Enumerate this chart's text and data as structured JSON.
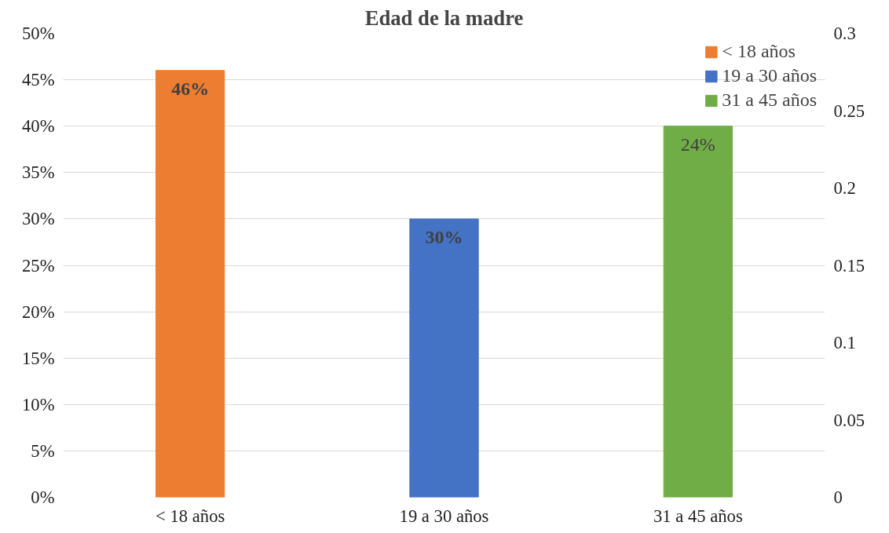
{
  "chart_data": {
    "type": "bar",
    "title": "Edad de la madre",
    "categories": [
      "< 18 años",
      "19 a 30 años",
      "31 a 45 años"
    ],
    "series": [
      {
        "name": "< 18 años",
        "color": "#ed7d31",
        "values": [
          46,
          null,
          null
        ],
        "value_labels": [
          "46%",
          null,
          null
        ]
      },
      {
        "name": "19 a 30 años",
        "color": "#4472c4",
        "values": [
          null,
          30,
          null
        ],
        "value_labels": [
          null,
          "30%",
          null
        ]
      },
      {
        "name": "31 a 45 años",
        "color": "#70ad47",
        "values": [
          null,
          null,
          0.24
        ],
        "value_labels": [
          null,
          null,
          "24%"
        ],
        "axis": "y2"
      }
    ],
    "ylim": [
      0,
      50
    ],
    "yticks": [
      {
        "value": 0,
        "label": "0%"
      },
      {
        "value": 5,
        "label": "5%"
      },
      {
        "value": 10,
        "label": "10%"
      },
      {
        "value": 15,
        "label": "15%"
      },
      {
        "value": 20,
        "label": "20%"
      },
      {
        "value": 25,
        "label": "25%"
      },
      {
        "value": 30,
        "label": "30%"
      },
      {
        "value": 35,
        "label": "35%"
      },
      {
        "value": 40,
        "label": "40%"
      },
      {
        "value": 45,
        "label": "45%"
      },
      {
        "value": 50,
        "label": "50%"
      }
    ],
    "y2lim": [
      0,
      0.3
    ],
    "y2ticks": [
      0,
      0.05,
      0.1,
      0.15,
      0.2,
      0.25,
      0.3
    ],
    "grid": "y",
    "legend": "top right"
  }
}
